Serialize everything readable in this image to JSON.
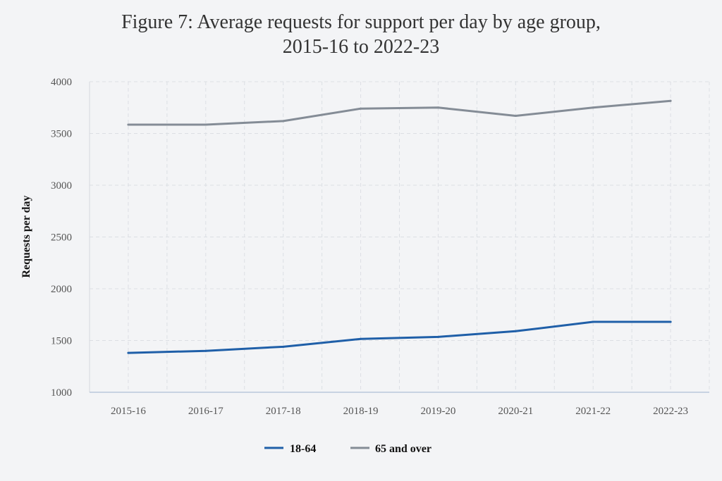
{
  "title_line1": "Figure 7: Average requests for support per day by age group,",
  "title_line2": "2015-16 to 2022-23",
  "chart_data": {
    "type": "line",
    "title": "Figure 7: Average requests for support per day by age group, 2015-16 to 2022-23",
    "xlabel": "",
    "ylabel": "Requests per day",
    "categories": [
      "2015-16",
      "2016-17",
      "2017-18",
      "2018-19",
      "2019-20",
      "2020-21",
      "2021-22",
      "2022-23"
    ],
    "ylim": [
      1000,
      4000
    ],
    "yticks": [
      1000,
      1500,
      2000,
      2500,
      3000,
      3500,
      4000
    ],
    "grid": true,
    "legend_position": "bottom",
    "series": [
      {
        "name": "18-64",
        "color": "#1f5fa8",
        "values": [
          1380,
          1400,
          1440,
          1515,
          1535,
          1590,
          1680,
          1680
        ]
      },
      {
        "name": "65 and over",
        "color": "#848c96",
        "values": [
          3585,
          3585,
          3620,
          3740,
          3750,
          3670,
          3750,
          3815
        ]
      }
    ]
  }
}
